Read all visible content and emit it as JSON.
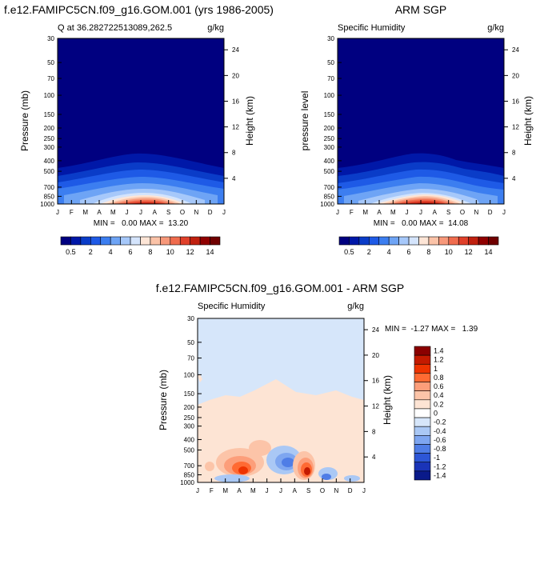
{
  "chart_data": [
    {
      "type": "heatmap",
      "title": "f.e12.FAMIPC5CN.f09_g16.GOM.001 (yrs 1986-2005)",
      "subtitle_left": "Q at 36.282722513089,262.5",
      "subtitle_right": "g/kg",
      "ylabel": "Pressure (mb)",
      "ylabel_right": "Height (km)",
      "months": [
        "J",
        "F",
        "M",
        "A",
        "M",
        "J",
        "J",
        "A",
        "S",
        "O",
        "N",
        "D",
        "J"
      ],
      "pressure_ticks": [
        "30",
        "50",
        "70",
        "100",
        "150",
        "200",
        "250",
        "300",
        "400",
        "500",
        "700",
        "850",
        "1000"
      ],
      "height_ticks": [
        "4",
        "8",
        "12",
        "16",
        "20",
        "24"
      ],
      "stats": "MIN =   0.00 MAX =  13.20",
      "levels": [
        "0.5",
        "2",
        "4",
        "6",
        "8",
        "10",
        "12",
        "14"
      ],
      "summary": {
        "min": 0.0,
        "max": 13.2,
        "peak_month": "Jul",
        "peak_pressure_mb": 900
      }
    },
    {
      "type": "heatmap",
      "title": "ARM SGP",
      "subtitle_left": "Specific Humidity",
      "subtitle_right": "g/kg",
      "ylabel": "pressure level",
      "ylabel_right": "Height (km)",
      "months": [
        "J",
        "F",
        "M",
        "A",
        "M",
        "J",
        "J",
        "A",
        "S",
        "O",
        "N",
        "D",
        "J"
      ],
      "pressure_ticks": [
        "30",
        "50",
        "70",
        "100",
        "150",
        "200",
        "250",
        "300",
        "400",
        "500",
        "700",
        "850",
        "1000"
      ],
      "height_ticks": [
        "4",
        "8",
        "12",
        "16",
        "20",
        "24"
      ],
      "stats": "MIN =   0.00 MAX =  14.08",
      "levels": [
        "0.5",
        "2",
        "4",
        "6",
        "8",
        "10",
        "12",
        "14"
      ],
      "summary": {
        "min": 0.0,
        "max": 14.08,
        "peak_month": "Jul",
        "peak_pressure_mb": 900
      }
    },
    {
      "type": "heatmap",
      "title": "f.e12.FAMIPC5CN.f09_g16.GOM.001 - ARM SGP",
      "subtitle_left": "Specific Humidity",
      "subtitle_right": "g/kg",
      "ylabel": "Pressure (mb)",
      "ylabel_right": "Height (km)",
      "months": [
        "J",
        "F",
        "M",
        "A",
        "M",
        "J",
        "J",
        "A",
        "S",
        "O",
        "N",
        "D",
        "J"
      ],
      "pressure_ticks": [
        "30",
        "50",
        "70",
        "100",
        "150",
        "200",
        "250",
        "300",
        "400",
        "500",
        "700",
        "850",
        "1000"
      ],
      "height_ticks": [
        "4",
        "8",
        "12",
        "16",
        "20",
        "24"
      ],
      "stats": "MIN =  -1.27 MAX =   1.39",
      "levels": [
        "1.4",
        "1.2",
        "1",
        "0.8",
        "0.6",
        "0.4",
        "0.2",
        "0",
        "-0.2",
        "-0.4",
        "-0.6",
        "-0.8",
        "-1",
        "-1.2",
        "-1.4"
      ],
      "summary": {
        "min": -1.27,
        "max": 1.39
      }
    }
  ],
  "colors": {
    "abs_scale": [
      "#000080",
      "#0018a8",
      "#0a3cc8",
      "#1e5ae6",
      "#3c7ef0",
      "#6ea4f5",
      "#a6c8fa",
      "#d4e4fc",
      "#fde5d6",
      "#fbc3a8",
      "#f7987a",
      "#f06c4e",
      "#e0402a",
      "#c0200f",
      "#900000",
      "#700000"
    ],
    "diff_scale": [
      "#8b0000",
      "#c41a00",
      "#ee3300",
      "#ff6a33",
      "#fc9e7a",
      "#fcc4a8",
      "#fde4d4",
      "#ffffff",
      "#d6e6fa",
      "#aac8f5",
      "#7ea6f0",
      "#4f7de6",
      "#2d56d6",
      "#1a34b8",
      "#0a1a8a"
    ]
  }
}
